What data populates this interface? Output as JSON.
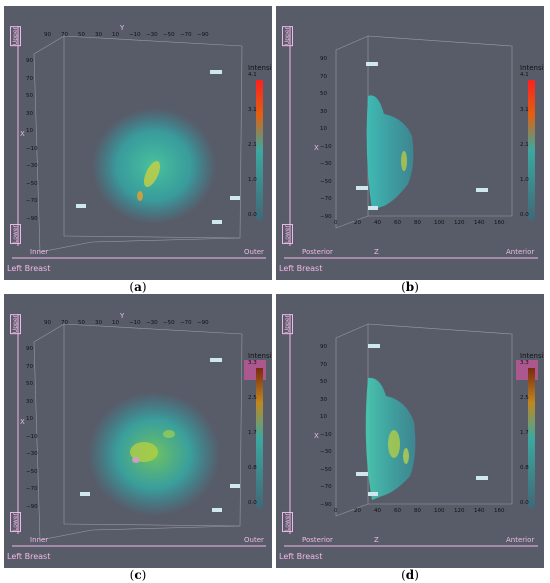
{
  "panels": [
    {
      "id": "a",
      "caption_letter": "a",
      "view": "coronal",
      "axis_top_letter": "Y",
      "axis_side_letter": "X",
      "top_ticks": [
        "90",
        "70",
        "50",
        "30",
        "10",
        "−10",
        "−30",
        "−50",
        "−70",
        "−90"
      ],
      "side_ticks": [
        "90",
        "70",
        "50",
        "30",
        "10",
        "−10",
        "−30",
        "−50",
        "−70",
        "−90"
      ],
      "upper": "Upper",
      "lower": "Lower",
      "left_end": "Inner",
      "right_end": "Outer",
      "corner": "Left Breast",
      "legend": {
        "title": "Intensity",
        "ticks": [
          "4.1",
          "3.1",
          "2.1",
          "1.0",
          "0.0"
        ],
        "style": "red"
      }
    },
    {
      "id": "b",
      "caption_letter": "b",
      "view": "sagittal",
      "axis_top_letter": "Z",
      "axis_side_letter": "X",
      "bottom_ticks": [
        "0",
        "20",
        "40",
        "60",
        "80",
        "100",
        "120",
        "140",
        "160"
      ],
      "side_ticks": [
        "90",
        "70",
        "50",
        "30",
        "10",
        "−10",
        "−30",
        "−50",
        "−70",
        "−90"
      ],
      "upper": "Upper",
      "lower": "Lower",
      "left_end": "Posterior",
      "right_end": "Anterior",
      "corner": "Left Breast",
      "legend": {
        "title": "Intensity",
        "ticks": [
          "4.1",
          "3.1",
          "2.1",
          "1.0",
          "0.0"
        ],
        "style": "red"
      }
    },
    {
      "id": "c",
      "caption_letter": "c",
      "view": "coronal",
      "axis_top_letter": "Y",
      "axis_side_letter": "X",
      "top_ticks": [
        "90",
        "70",
        "50",
        "30",
        "10",
        "−10",
        "−30",
        "−50",
        "−70",
        "−90"
      ],
      "side_ticks": [
        "90",
        "70",
        "50",
        "30",
        "10",
        "−10",
        "−30",
        "−50",
        "−70",
        "−90"
      ],
      "upper": "Upper",
      "lower": "Lower",
      "left_end": "Inner",
      "right_end": "Outer",
      "corner": "Left Breast",
      "legend": {
        "title": "Intensity",
        "ticks": [
          "3.3",
          "2.5",
          "1.7",
          "0.8",
          "0.0"
        ],
        "style": "brown"
      }
    },
    {
      "id": "d",
      "caption_letter": "d",
      "view": "sagittal",
      "axis_top_letter": "Z",
      "axis_side_letter": "X",
      "bottom_ticks": [
        "0",
        "20",
        "40",
        "60",
        "80",
        "100",
        "120",
        "140",
        "160"
      ],
      "side_ticks": [
        "90",
        "70",
        "50",
        "30",
        "10",
        "−10",
        "−30",
        "−50",
        "−70",
        "−90"
      ],
      "upper": "Upper",
      "lower": "Lower",
      "left_end": "Posterior",
      "right_end": "Anterior",
      "corner": "Left Breast",
      "legend": {
        "title": "Intensity",
        "ticks": [
          "3.3",
          "2.5",
          "1.7",
          "0.8",
          "0.0"
        ],
        "style": "brown"
      }
    }
  ],
  "colors": {
    "background": "#585c69",
    "grid": "#9a9aa2",
    "label_pink": "#f0b8e8",
    "volume_teal": "#2ab8a8"
  }
}
